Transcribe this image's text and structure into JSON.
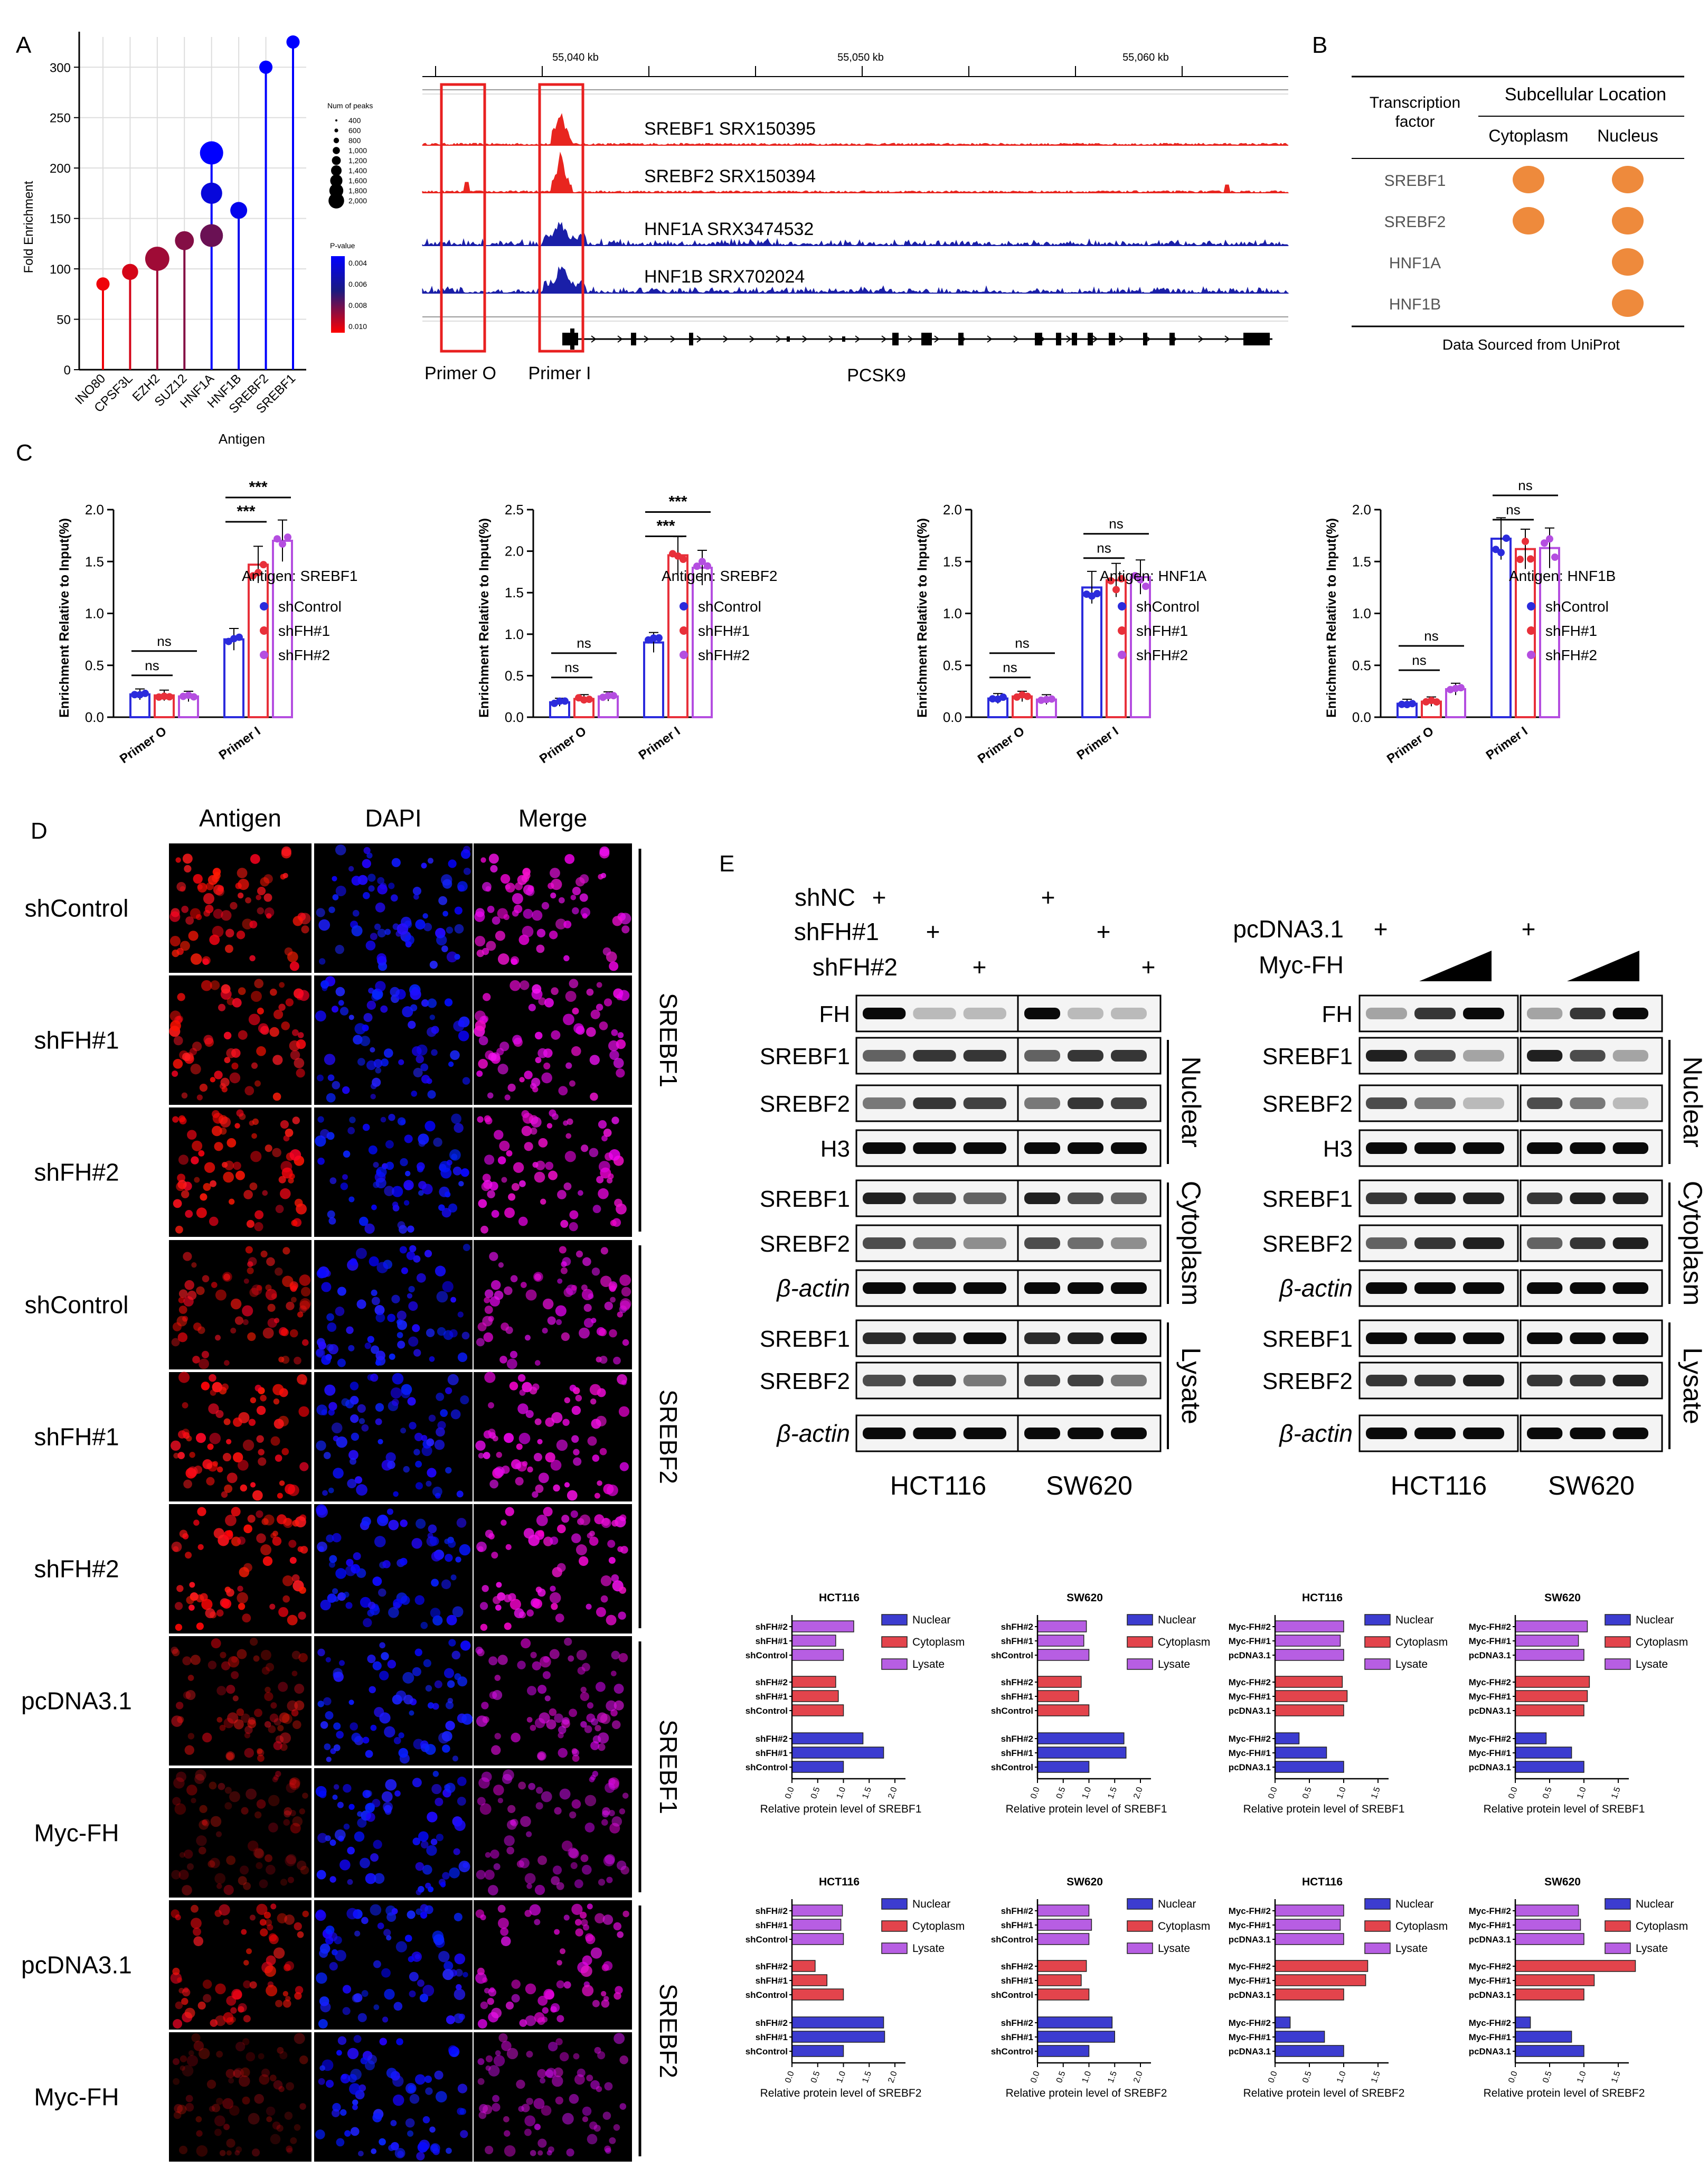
{
  "panels": {
    "A": "A",
    "B": "B",
    "C": "C",
    "D": "D",
    "E": "E"
  },
  "panelA": {
    "lollipop": {
      "ylabel": "Fold Enrichment",
      "xlabel": "Antigen",
      "yticks": [
        0,
        50,
        100,
        150,
        200,
        250,
        300
      ],
      "categories": [
        "INO80",
        "CPSF3L",
        "EZH2",
        "SUZ12",
        "HNF1A",
        "HNF1B",
        "SREBF2",
        "SREBF1"
      ],
      "points": [
        {
          "cat": 0,
          "y": 85,
          "peaks": 300,
          "p": 0.0105
        },
        {
          "cat": 1,
          "y": 97,
          "peaks": 600,
          "p": 0.01
        },
        {
          "cat": 2,
          "y": 110,
          "peaks": 2000,
          "p": 0.009
        },
        {
          "cat": 3,
          "y": 128,
          "peaks": 1000,
          "p": 0.0085
        },
        {
          "cat": 4,
          "y": 133,
          "peaks": 1700,
          "p": 0.008
        },
        {
          "cat": 4,
          "y": 175,
          "peaks": 1400,
          "p": 0.004
        },
        {
          "cat": 4,
          "y": 215,
          "peaks": 1800,
          "p": 0.003
        },
        {
          "cat": 5,
          "y": 158,
          "peaks": 700,
          "p": 0.0035
        },
        {
          "cat": 6,
          "y": 300,
          "peaks": 300,
          "p": 0.003
        },
        {
          "cat": 7,
          "y": 325,
          "peaks": 300,
          "p": 0.003
        }
      ],
      "size_legend": {
        "title": "Num of peaks",
        "values": [
          "400",
          "600",
          "800",
          "1,000",
          "1,200",
          "1,400",
          "1,600",
          "1,800",
          "2,000"
        ]
      },
      "color_legend": {
        "title": "P-value",
        "ticks": [
          "0.004",
          "0.006",
          "0.008",
          "0.010"
        ]
      }
    },
    "browser": {
      "coords": [
        "55,040 kb",
        "55,050 kb",
        "55,060 kb"
      ],
      "tracks": [
        {
          "label": "SREBF1 SRX150395",
          "color": "#e8251f"
        },
        {
          "label": "SREBF2 SRX150394",
          "color": "#e8251f"
        },
        {
          "label": "HNF1A SRX3474532",
          "color": "#1a1fa8"
        },
        {
          "label": "HNF1B SRX702024",
          "color": "#1a1fa8"
        }
      ],
      "primer_o": "Primer O",
      "primer_i": "Primer I",
      "gene": "PCSK9"
    }
  },
  "panelB": {
    "header_tf": "Transcription factor",
    "header_loc": "Subcellular Location",
    "sub_cyto": "Cytoplasm",
    "sub_nuc": "Nucleus",
    "rows": [
      {
        "name": "SREBF1",
        "cyto": true,
        "nuc": true
      },
      {
        "name": "SREBF2",
        "cyto": true,
        "nuc": true
      },
      {
        "name": "HNF1A",
        "cyto": false,
        "nuc": true
      },
      {
        "name": "HNF1B",
        "cyto": false,
        "nuc": true
      }
    ],
    "source": "Data Sourced from UniProt"
  },
  "chart_data": [
    {
      "type": "bar",
      "antigen_label": "Antigen: SREBF1",
      "ylabel": "Enrichment Relative to Input(%)",
      "categories": [
        "Primer O",
        "Primer I"
      ],
      "ylim": [
        0,
        2.0
      ],
      "yticks": [
        "0.0",
        "0.5",
        "1.0",
        "1.5",
        "2.0"
      ],
      "series": [
        {
          "name": "shControl",
          "values": [
            0.22,
            0.75
          ]
        },
        {
          "name": "shFH#1",
          "values": [
            0.21,
            1.47
          ]
        },
        {
          "name": "shFH#2",
          "values": [
            0.2,
            1.7
          ]
        }
      ],
      "sig": [
        {
          "label": "ns",
          "group": 0,
          "pair": [
            0,
            1
          ]
        },
        {
          "label": "ns",
          "group": 0,
          "pair": [
            0,
            2
          ]
        },
        {
          "label": "***",
          "group": 1,
          "pair": [
            0,
            1
          ]
        },
        {
          "label": "***",
          "group": 1,
          "pair": [
            0,
            2
          ]
        }
      ]
    },
    {
      "type": "bar",
      "antigen_label": "Antigen: SREBF2",
      "ylabel": "Enrichment Relative to Input(%)",
      "categories": [
        "Primer O",
        "Primer I"
      ],
      "ylim": [
        0,
        2.5
      ],
      "yticks": [
        "0.0",
        "0.5",
        "1.0",
        "1.5",
        "2.0",
        "2.5"
      ],
      "series": [
        {
          "name": "shControl",
          "values": [
            0.18,
            0.9
          ]
        },
        {
          "name": "shFH#1",
          "values": [
            0.22,
            1.95
          ]
        },
        {
          "name": "shFH#2",
          "values": [
            0.25,
            1.8
          ]
        }
      ],
      "sig": [
        {
          "label": "ns",
          "group": 0,
          "pair": [
            0,
            1
          ]
        },
        {
          "label": "ns",
          "group": 0,
          "pair": [
            0,
            2
          ]
        },
        {
          "label": "***",
          "group": 1,
          "pair": [
            0,
            1
          ]
        },
        {
          "label": "***",
          "group": 1,
          "pair": [
            0,
            2
          ]
        }
      ]
    },
    {
      "type": "bar",
      "antigen_label": "Antigen: HNF1A",
      "ylabel": "Enrichment Relative to Input(%)",
      "categories": [
        "Primer O",
        "Primer I"
      ],
      "ylim": [
        0,
        2.0
      ],
      "yticks": [
        "0.0",
        "0.5",
        "1.0",
        "1.5",
        "2.0"
      ],
      "series": [
        {
          "name": "shControl",
          "values": [
            0.18,
            1.25
          ]
        },
        {
          "name": "shFH#1",
          "values": [
            0.2,
            1.32
          ]
        },
        {
          "name": "shFH#2",
          "values": [
            0.17,
            1.35
          ]
        }
      ],
      "sig": [
        {
          "label": "ns",
          "group": 0,
          "pair": [
            0,
            1
          ]
        },
        {
          "label": "ns",
          "group": 0,
          "pair": [
            0,
            2
          ]
        },
        {
          "label": "ns",
          "group": 1,
          "pair": [
            0,
            1
          ]
        },
        {
          "label": "ns",
          "group": 1,
          "pair": [
            0,
            2
          ]
        }
      ]
    },
    {
      "type": "bar",
      "antigen_label": "Antigen: HNF1B",
      "ylabel": "Enrichment Relative to Input(%)",
      "categories": [
        "Primer O",
        "Primer I"
      ],
      "ylim": [
        0,
        2.0
      ],
      "yticks": [
        "0.0",
        "0.5",
        "1.0",
        "1.5",
        "2.0"
      ],
      "series": [
        {
          "name": "shControl",
          "values": [
            0.13,
            1.72
          ]
        },
        {
          "name": "shFH#1",
          "values": [
            0.15,
            1.62
          ]
        },
        {
          "name": "shFH#2",
          "values": [
            0.27,
            1.63
          ]
        }
      ],
      "sig": [
        {
          "label": "ns",
          "group": 0,
          "pair": [
            0,
            1
          ]
        },
        {
          "label": "ns",
          "group": 0,
          "pair": [
            0,
            2
          ]
        },
        {
          "label": "ns",
          "group": 1,
          "pair": [
            0,
            1
          ]
        },
        {
          "label": "ns",
          "group": 1,
          "pair": [
            0,
            2
          ]
        }
      ]
    }
  ],
  "panelD": {
    "col_headers": [
      "Antigen",
      "DAPI",
      "Merge"
    ],
    "rows": [
      "shControl",
      "shFH#1",
      "shFH#2",
      "shControl",
      "shFH#1",
      "shFH#2",
      "pcDNA3.1",
      "Myc-FH",
      "pcDNA3.1",
      "Myc-FH"
    ],
    "groups": [
      {
        "label": "SREBF1",
        "start": 0,
        "end": 2
      },
      {
        "label": "SREBF2",
        "start": 3,
        "end": 5
      },
      {
        "label": "SREBF1",
        "start": 6,
        "end": 7
      },
      {
        "label": "SREBF2",
        "start": 8,
        "end": 9
      }
    ],
    "intensity": [
      0.85,
      0.9,
      0.9,
      0.7,
      0.95,
      0.95,
      0.5,
      0.35,
      0.7,
      0.3
    ]
  },
  "panelE": {
    "left": {
      "conditions": [
        "shNC",
        "shFH#1",
        "shFH#2"
      ],
      "marks": [
        [
          1,
          0,
          0,
          1,
          0,
          0
        ],
        [
          0,
          1,
          0,
          0,
          1,
          0
        ],
        [
          0,
          0,
          1,
          0,
          0,
          1
        ]
      ],
      "cells": [
        "HCT116",
        "SW620"
      ],
      "rows": [
        "FH",
        "SREBF1",
        "SREBF2",
        "H3",
        "SREBF1",
        "SREBF2",
        "β-actin",
        "SREBF1",
        "SREBF2",
        "β-actin"
      ],
      "fractions": [
        {
          "label": "Nuclear",
          "start": 1,
          "end": 3
        },
        {
          "label": "Cytoplasm",
          "start": 4,
          "end": 6
        },
        {
          "label": "Lysate",
          "start": 7,
          "end": 9
        }
      ]
    },
    "right": {
      "conditions": [
        "pcDNA3.1",
        "Myc-FH"
      ],
      "marks": [
        "+",
        "+"
      ],
      "cells": [
        "HCT116",
        "SW620"
      ],
      "rows": [
        "FH",
        "SREBF1",
        "SREBF2",
        "H3",
        "SREBF1",
        "SREBF2",
        "β-actin",
        "SREBF1",
        "SREBF2",
        "β-actin"
      ],
      "fractions": [
        {
          "label": "Nuclear",
          "start": 1,
          "end": 3
        },
        {
          "label": "Cytoplasm",
          "start": 4,
          "end": 6
        },
        {
          "label": "Lysate",
          "start": 7,
          "end": 9
        }
      ]
    },
    "band_strength_left": [
      [
        1,
        0.2,
        0.2
      ],
      [
        0.6,
        0.8,
        0.8
      ],
      [
        0.5,
        0.8,
        0.75
      ],
      [
        1,
        1,
        1
      ],
      [
        0.9,
        0.7,
        0.6
      ],
      [
        0.7,
        0.55,
        0.4
      ],
      [
        1,
        1,
        1
      ],
      [
        0.85,
        0.9,
        1
      ],
      [
        0.7,
        0.75,
        0.5
      ],
      [
        1,
        1,
        1
      ]
    ],
    "band_strength_right": [
      [
        0.3,
        0.8,
        1
      ],
      [
        0.9,
        0.7,
        0.3
      ],
      [
        0.7,
        0.5,
        0.2
      ],
      [
        1,
        1,
        1
      ],
      [
        0.8,
        0.9,
        0.9
      ],
      [
        0.6,
        0.8,
        0.9
      ],
      [
        1,
        1,
        1
      ],
      [
        1,
        1,
        1
      ],
      [
        0.8,
        0.8,
        0.9
      ],
      [
        1,
        1,
        1
      ]
    ]
  },
  "quant": [
    {
      "title": "HCT116",
      "labels": [
        "shFH#2",
        "shFH#1",
        "shControl"
      ],
      "xlabel": "Relative protein level of SREBF1",
      "xticks": [
        "0.0",
        "0.5",
        "1.0",
        "1.5",
        "2.0"
      ],
      "xmax": 2.0,
      "legend": [
        "Nuclear",
        "Cytoplasm",
        "Lysate"
      ],
      "nuclear": [
        1.38,
        1.78,
        1.0
      ],
      "cytoplasm": [
        0.85,
        0.9,
        1.0
      ],
      "lysate": [
        1.2,
        0.85,
        1.0
      ]
    },
    {
      "title": "SW620",
      "labels": [
        "shFH#2",
        "shFH#1",
        "shControl"
      ],
      "xlabel": "Relative protein level of SREBF1",
      "xticks": [
        "0.0",
        "0.5",
        "1.0",
        "1.5",
        "2.0"
      ],
      "xmax": 2.0,
      "legend": [
        "Nuclear",
        "Cytoplasm",
        "Lysate"
      ],
      "nuclear": [
        1.68,
        1.72,
        1.0
      ],
      "cytoplasm": [
        0.85,
        0.8,
        1.0
      ],
      "lysate": [
        0.95,
        0.9,
        1.0
      ]
    },
    {
      "title": "HCT116",
      "labels": [
        "Myc-FH#2",
        "Myc-FH#1",
        "pcDNA3.1"
      ],
      "xlabel": "Relative protein level of SREBF1",
      "xticks": [
        "0.0",
        "0.5",
        "1.0",
        "1.5"
      ],
      "xmax": 1.5,
      "legend": [
        "Nuclear",
        "Cytoplasm",
        "Lysate"
      ],
      "nuclear": [
        0.35,
        0.75,
        1.0
      ],
      "cytoplasm": [
        0.98,
        1.05,
        1.0
      ],
      "lysate": [
        1.0,
        0.95,
        1.0
      ]
    },
    {
      "title": "SW620",
      "labels": [
        "Myc-FH#2",
        "Myc-FH#1",
        "pcDNA3.1"
      ],
      "xlabel": "Relative protein level of SREBF1",
      "xticks": [
        "0.0",
        "0.5",
        "1.0",
        "1.5"
      ],
      "xmax": 1.5,
      "legend": [
        "Nuclear",
        "Cytoplasm",
        "Lysate"
      ],
      "nuclear": [
        0.45,
        0.82,
        1.0
      ],
      "cytoplasm": [
        1.08,
        1.05,
        1.0
      ],
      "lysate": [
        1.05,
        0.92,
        1.0
      ]
    },
    {
      "title": "HCT116",
      "labels": [
        "shFH#2",
        "shFH#1",
        "shControl"
      ],
      "xlabel": "Relative protein level of SREBF2",
      "xticks": [
        "0.0",
        "0.5",
        "1.0",
        "1.5",
        "2.0"
      ],
      "xmax": 2.0,
      "legend": [
        "Nuclear",
        "Cytoplasm",
        "Lysate"
      ],
      "nuclear": [
        1.78,
        1.8,
        1.0
      ],
      "cytoplasm": [
        0.45,
        0.68,
        1.0
      ],
      "lysate": [
        0.98,
        0.95,
        1.0
      ]
    },
    {
      "title": "SW620",
      "labels": [
        "shFH#2",
        "shFH#1",
        "shControl"
      ],
      "xlabel": "Relative protein level of SREBF2",
      "xticks": [
        "0.0",
        "0.5",
        "1.0",
        "1.5",
        "2.0"
      ],
      "xmax": 2.0,
      "legend": [
        "Nuclear",
        "Cytoplasm",
        "Lysate"
      ],
      "nuclear": [
        1.45,
        1.5,
        1.0
      ],
      "cytoplasm": [
        0.95,
        0.85,
        1.0
      ],
      "lysate": [
        1.0,
        1.05,
        1.0
      ]
    },
    {
      "title": "HCT116",
      "labels": [
        "Myc-FH#2",
        "Myc-FH#1",
        "pcDNA3.1"
      ],
      "xlabel": "Relative protein level of SREBF2",
      "xticks": [
        "0.0",
        "0.5",
        "1.0",
        "1.5"
      ],
      "xmax": 1.5,
      "legend": [
        "Nuclear",
        "Cytoplasm",
        "Lysate"
      ],
      "nuclear": [
        0.22,
        0.72,
        1.0
      ],
      "cytoplasm": [
        1.35,
        1.32,
        1.0
      ],
      "lysate": [
        1.0,
        0.95,
        1.0
      ]
    },
    {
      "title": "SW620",
      "labels": [
        "Myc-FH#2",
        "Myc-FH#1",
        "pcDNA3.1"
      ],
      "xlabel": "Relative protein level of SREBF2",
      "xticks": [
        "0.0",
        "0.5",
        "1.0",
        "1.5"
      ],
      "xmax": 1.5,
      "legend": [
        "Nuclear",
        "Cytoplasm",
        "Lysate"
      ],
      "nuclear": [
        0.22,
        0.82,
        1.0
      ],
      "cytoplasm": [
        1.75,
        1.15,
        1.0
      ],
      "lysate": [
        0.92,
        0.95,
        1.0
      ]
    }
  ],
  "colors": {
    "blue": "#2b2bdc",
    "red": "#e8303a",
    "purple": "#b44ee0",
    "nuclear": "#3c3cd0",
    "cytoplasm": "#e3444c",
    "lysate": "#b75ee3",
    "orange": "#ee8a3c",
    "track_red": "#e8251f",
    "track_blue": "#1a1fa8"
  }
}
